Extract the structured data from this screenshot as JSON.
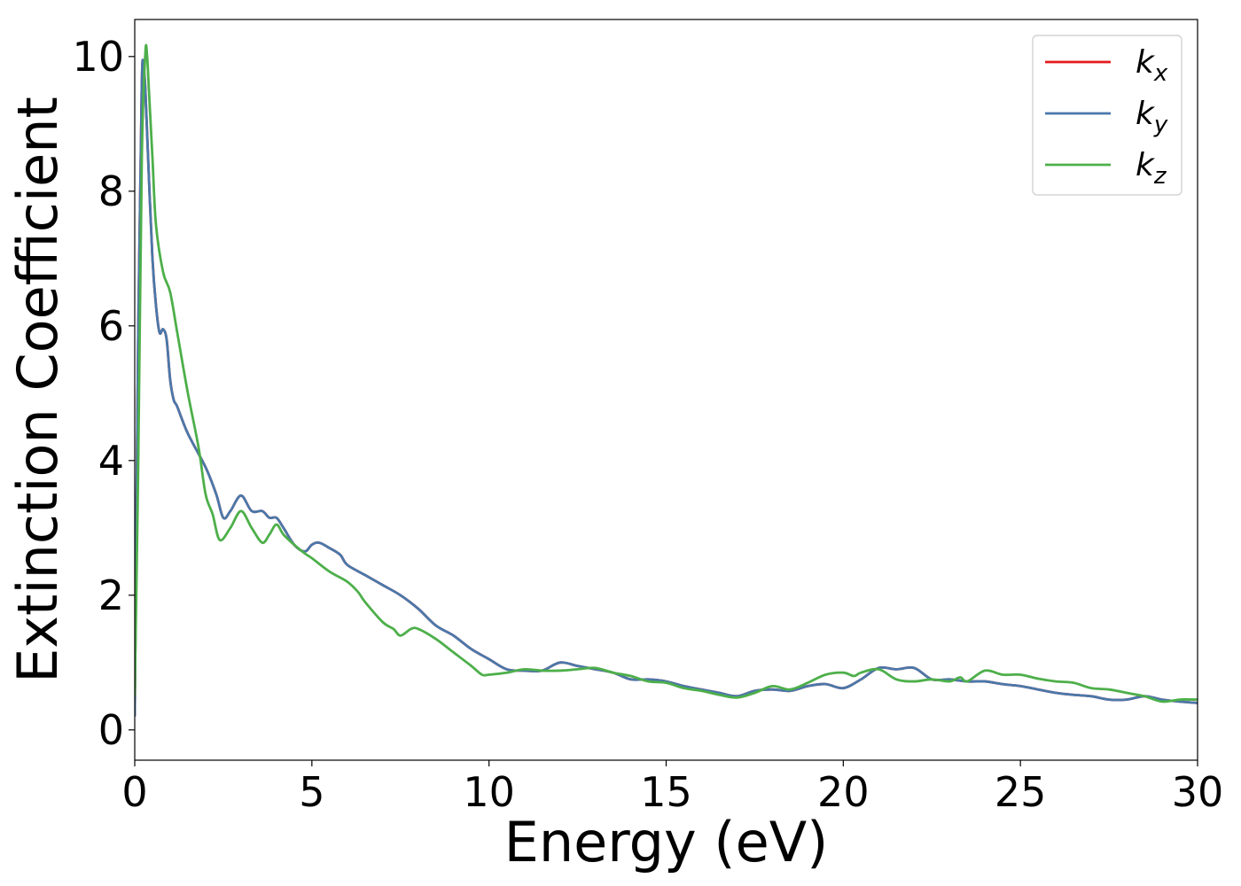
{
  "chart_data": {
    "type": "line",
    "title": "",
    "xlabel": "Energy (eV)",
    "ylabel": "Extinction Coefficient",
    "xlim": [
      0,
      30
    ],
    "ylim": [
      -0.45,
      10.55
    ],
    "xticks": [
      0,
      5,
      10,
      15,
      20,
      25,
      30
    ],
    "yticks": [
      0,
      2,
      4,
      6,
      8,
      10
    ],
    "xtick_labels": [
      "0",
      "5",
      "10",
      "15",
      "20",
      "25",
      "30"
    ],
    "ytick_labels": [
      "0",
      "2",
      "4",
      "6",
      "8",
      "10"
    ],
    "grid": false,
    "legend_position": "top-right",
    "series": [
      {
        "name": "k_x",
        "label_base": "k",
        "label_sub": "x",
        "color": "#e41a1c",
        "x": [
          0,
          0.1,
          0.2,
          0.25,
          0.3,
          0.4,
          0.5,
          0.6,
          0.7,
          0.8,
          0.9,
          1.0,
          1.1,
          1.2,
          1.5,
          2.0,
          2.3,
          2.5,
          2.7,
          3.0,
          3.3,
          3.6,
          3.8,
          4.0,
          4.2,
          4.5,
          4.8,
          5.0,
          5.2,
          5.5,
          5.8,
          6.0,
          6.5,
          7.0,
          7.5,
          8.0,
          8.5,
          9.0,
          9.5,
          10.0,
          10.5,
          11.0,
          11.5,
          12.0,
          12.5,
          13.0,
          13.5,
          14.0,
          14.5,
          15.0,
          15.5,
          16.0,
          16.5,
          17.0,
          17.5,
          18.0,
          18.5,
          19.0,
          19.5,
          20.0,
          20.5,
          21.0,
          21.5,
          22.0,
          22.5,
          23.0,
          23.5,
          24.0,
          24.5,
          25.0,
          25.5,
          26.0,
          26.5,
          27.0,
          27.5,
          28.0,
          28.5,
          29.0,
          29.5,
          30.0
        ],
        "y": [
          0.2,
          6.0,
          9.6,
          9.8,
          9.5,
          8.2,
          7.0,
          6.3,
          5.9,
          5.95,
          5.8,
          5.2,
          4.9,
          4.8,
          4.4,
          3.9,
          3.5,
          3.15,
          3.25,
          3.48,
          3.25,
          3.25,
          3.15,
          3.15,
          3.0,
          2.75,
          2.65,
          2.75,
          2.78,
          2.7,
          2.6,
          2.45,
          2.3,
          2.15,
          2.0,
          1.8,
          1.55,
          1.4,
          1.2,
          1.05,
          0.9,
          0.88,
          0.88,
          1.0,
          0.95,
          0.9,
          0.85,
          0.75,
          0.75,
          0.72,
          0.65,
          0.6,
          0.55,
          0.5,
          0.58,
          0.6,
          0.58,
          0.65,
          0.68,
          0.62,
          0.75,
          0.92,
          0.9,
          0.92,
          0.75,
          0.75,
          0.72,
          0.72,
          0.68,
          0.65,
          0.6,
          0.55,
          0.52,
          0.5,
          0.45,
          0.45,
          0.5,
          0.45,
          0.42,
          0.4
        ]
      },
      {
        "name": "k_y",
        "label_base": "k",
        "label_sub": "y",
        "color": "#4a78aa",
        "x": [
          0,
          0.1,
          0.2,
          0.25,
          0.3,
          0.4,
          0.5,
          0.6,
          0.7,
          0.8,
          0.9,
          1.0,
          1.1,
          1.2,
          1.5,
          2.0,
          2.3,
          2.5,
          2.7,
          3.0,
          3.3,
          3.6,
          3.8,
          4.0,
          4.2,
          4.5,
          4.8,
          5.0,
          5.2,
          5.5,
          5.8,
          6.0,
          6.5,
          7.0,
          7.5,
          8.0,
          8.5,
          9.0,
          9.5,
          10.0,
          10.5,
          11.0,
          11.5,
          12.0,
          12.5,
          13.0,
          13.5,
          14.0,
          14.5,
          15.0,
          15.5,
          16.0,
          16.5,
          17.0,
          17.5,
          18.0,
          18.5,
          19.0,
          19.5,
          20.0,
          20.5,
          21.0,
          21.5,
          22.0,
          22.5,
          23.0,
          23.5,
          24.0,
          24.5,
          25.0,
          25.5,
          26.0,
          26.5,
          27.0,
          27.5,
          28.0,
          28.5,
          29.0,
          29.5,
          30.0
        ],
        "y": [
          0.2,
          6.0,
          9.6,
          9.8,
          9.5,
          8.2,
          7.0,
          6.3,
          5.9,
          5.95,
          5.8,
          5.2,
          4.9,
          4.8,
          4.4,
          3.9,
          3.5,
          3.15,
          3.25,
          3.48,
          3.25,
          3.25,
          3.15,
          3.15,
          3.0,
          2.75,
          2.65,
          2.75,
          2.78,
          2.7,
          2.6,
          2.45,
          2.3,
          2.15,
          2.0,
          1.8,
          1.55,
          1.4,
          1.2,
          1.05,
          0.9,
          0.88,
          0.88,
          1.0,
          0.95,
          0.9,
          0.85,
          0.75,
          0.75,
          0.72,
          0.65,
          0.6,
          0.55,
          0.5,
          0.58,
          0.6,
          0.58,
          0.65,
          0.68,
          0.62,
          0.75,
          0.92,
          0.9,
          0.92,
          0.75,
          0.75,
          0.72,
          0.72,
          0.68,
          0.65,
          0.6,
          0.55,
          0.52,
          0.5,
          0.45,
          0.45,
          0.5,
          0.45,
          0.42,
          0.4
        ]
      },
      {
        "name": "k_z",
        "label_base": "k",
        "label_sub": "z",
        "color": "#4daf4a",
        "x": [
          0,
          0.1,
          0.2,
          0.3,
          0.35,
          0.4,
          0.5,
          0.6,
          0.8,
          1.0,
          1.2,
          1.5,
          1.8,
          2.0,
          2.2,
          2.4,
          2.7,
          3.0,
          3.3,
          3.6,
          3.8,
          4.0,
          4.2,
          4.5,
          4.8,
          5.0,
          5.5,
          6.0,
          6.3,
          6.5,
          7.0,
          7.3,
          7.5,
          7.8,
          8.0,
          8.5,
          9.0,
          9.5,
          9.8,
          10.0,
          10.5,
          11.0,
          11.5,
          12.0,
          12.5,
          13.0,
          13.5,
          14.0,
          14.5,
          15.0,
          15.5,
          16.0,
          16.5,
          17.0,
          17.5,
          18.0,
          18.5,
          19.0,
          19.5,
          20.0,
          20.3,
          20.5,
          21.0,
          21.5,
          22.0,
          22.5,
          23.0,
          23.3,
          23.5,
          24.0,
          24.5,
          25.0,
          25.5,
          26.0,
          26.5,
          27.0,
          27.5,
          28.0,
          28.5,
          29.0,
          29.5,
          30.0
        ],
        "y": [
          0.5,
          4.0,
          8.5,
          10.05,
          10.0,
          9.5,
          8.5,
          7.5,
          6.8,
          6.5,
          5.9,
          5.0,
          4.2,
          3.5,
          3.2,
          2.82,
          3.0,
          3.25,
          3.0,
          2.78,
          2.9,
          3.05,
          2.9,
          2.75,
          2.62,
          2.55,
          2.35,
          2.2,
          2.05,
          1.9,
          1.6,
          1.5,
          1.4,
          1.5,
          1.5,
          1.35,
          1.15,
          0.95,
          0.82,
          0.82,
          0.85,
          0.9,
          0.88,
          0.88,
          0.9,
          0.92,
          0.85,
          0.8,
          0.72,
          0.7,
          0.62,
          0.58,
          0.52,
          0.48,
          0.55,
          0.65,
          0.6,
          0.7,
          0.82,
          0.85,
          0.8,
          0.85,
          0.9,
          0.75,
          0.72,
          0.75,
          0.72,
          0.78,
          0.72,
          0.88,
          0.82,
          0.82,
          0.76,
          0.72,
          0.7,
          0.62,
          0.6,
          0.55,
          0.5,
          0.42,
          0.45,
          0.45
        ]
      }
    ]
  }
}
